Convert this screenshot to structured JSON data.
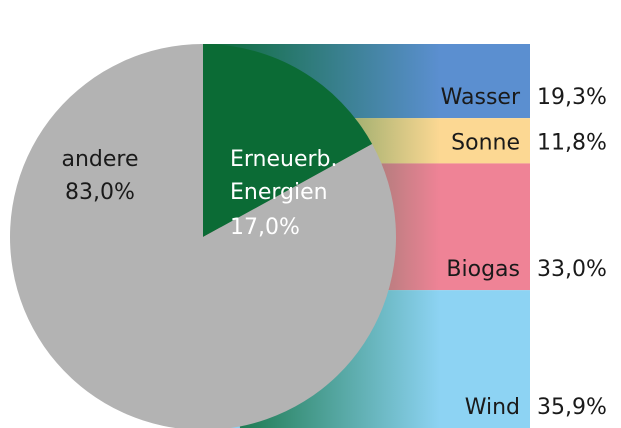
{
  "chart_data": [
    {
      "type": "pie",
      "categories": [
        "Erneuerb. Energien",
        "andere"
      ],
      "values": [
        17.0,
        83.0
      ],
      "value_labels": [
        "17,0%",
        "83,0%"
      ],
      "colors": [
        "#0b6b35",
        "#b3b3b3"
      ]
    },
    {
      "type": "bar",
      "categories": [
        "Wasser",
        "Sonne",
        "Biogas",
        "Wind"
      ],
      "values": [
        19.3,
        11.8,
        33.0,
        35.9
      ],
      "value_labels": [
        "19,3%",
        "11,8%",
        "33,0%",
        "35,9%"
      ],
      "colors": [
        "#5b8fd0",
        "#fcd893",
        "#ef8396",
        "#8dd3f3"
      ]
    }
  ]
}
